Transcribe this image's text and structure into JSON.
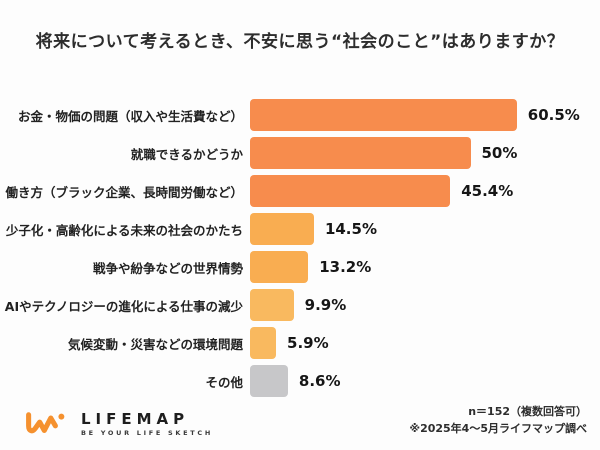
{
  "title": "将来について考えるとき、不安に思う“社会のこと”はありますか？",
  "chart_data": {
    "type": "bar",
    "orientation": "horizontal",
    "title": "将来について考えるとき、不安に思う“社会のこと”はありますか？",
    "categories": [
      "お金・物価の問題（収入や生活費など）",
      "就職できるかどうか",
      "働き方（ブラック企業、長時間労働など）",
      "少子化・高齢化による未来の社会のかたち",
      "戦争や紛争などの世界情勢",
      "AIやテクノロジーの進化による仕事の減少",
      "気候変動・災害などの環境問題",
      "その他"
    ],
    "values": [
      60.5,
      50,
      45.4,
      14.5,
      13.2,
      9.9,
      5.9,
      8.6
    ],
    "value_labels": [
      "60.5%",
      "50%",
      "45.4%",
      "14.5%",
      "13.2%",
      "9.9%",
      "5.9%",
      "8.6%"
    ],
    "bar_colors": [
      "#F78C4D",
      "#F78C4D",
      "#F78C4D",
      "#F9AD51",
      "#F9AD51",
      "#F9B95F",
      "#F9B95F",
      "#C7C7C9"
    ],
    "xlim": [
      0,
      68
    ],
    "grid": false,
    "legend": false,
    "value_label_position": "outside-end"
  },
  "footer": {
    "logo_name": "LIFEMAP",
    "logo_tagline": "BE YOUR LIFE SKETCH",
    "note_line1": "n＝152（複数回答可）",
    "note_line2": "※2025年4～5月ライフマップ調べ"
  },
  "colors": {
    "background": "#FDFDFD",
    "bar_orange_dark": "#F78C4D",
    "bar_orange_mid": "#F9AD51",
    "bar_orange_light": "#F9B95F",
    "bar_gray": "#C7C7C9",
    "logo_orange": "#F5912F",
    "text_dark": "#2A2A2A"
  }
}
